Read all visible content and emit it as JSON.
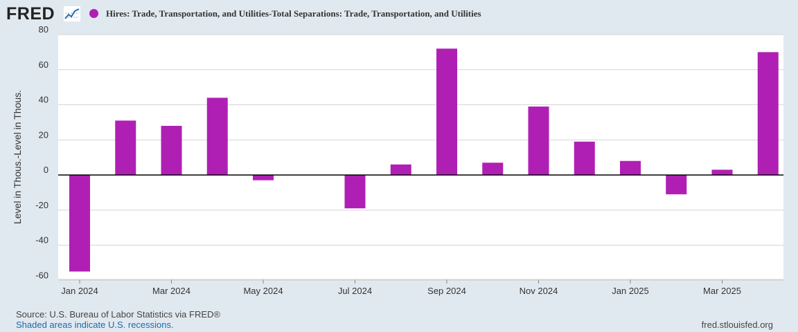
{
  "header": {
    "logo_text": "FRED",
    "logo_icon": "line-chart-icon",
    "legend_label": "Hires: Trade, Transportation, and Utilities-Total Separations: Trade, Transportation, and Utilities",
    "series_color": "#b01fb4"
  },
  "chart_data": {
    "type": "bar",
    "title": "",
    "xlabel": "",
    "ylabel": "Level in Thous.-Level in Thous.",
    "ylim": [
      -60,
      80
    ],
    "yticks": [
      80,
      60,
      40,
      20,
      0,
      -20,
      -40,
      -60
    ],
    "grid": true,
    "categories": [
      "Jan 2024",
      "Feb 2024",
      "Mar 2024",
      "Apr 2024",
      "May 2024",
      "Jun 2024",
      "Jul 2024",
      "Aug 2024",
      "Sep 2024",
      "Oct 2024",
      "Nov 2024",
      "Dec 2024",
      "Jan 2025",
      "Feb 2025",
      "Mar 2025",
      "Apr 2025"
    ],
    "xtick_labels": [
      "Jan 2024",
      "Mar 2024",
      "May 2024",
      "Jul 2024",
      "Sep 2024",
      "Nov 2024",
      "Jan 2025",
      "Mar 2025"
    ],
    "series": [
      {
        "name": "Hires: Trade, Transportation, and Utilities-Total Separations: Trade, Transportation, and Utilities",
        "color": "#b01fb4",
        "values": [
          -55,
          31,
          28,
          44,
          -3,
          0,
          -19,
          6,
          72,
          7,
          39,
          19,
          8,
          -11,
          3,
          70
        ]
      }
    ]
  },
  "footer": {
    "source": "U.S. Bureau of Labor Statistics via FRED®",
    "shaded_note": "Shaded areas indicate U.S. recessions.",
    "site": "fred.stlouisfed.org"
  }
}
